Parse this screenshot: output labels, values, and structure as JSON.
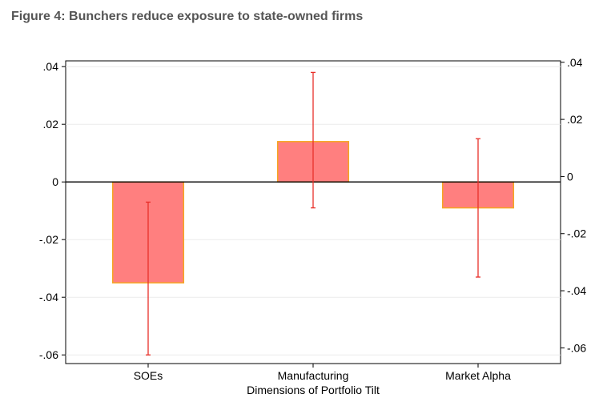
{
  "figure_title": "Figure 4: Bunchers reduce exposure to state-owned firms",
  "chart_data": {
    "type": "bar",
    "title": "",
    "xlabel": "Dimensions of Portfolio Tilt",
    "ylabel": "",
    "categories": [
      "SOEs",
      "Manufacturing",
      "Market Alpha"
    ],
    "values": [
      -0.035,
      0.014,
      -0.009
    ],
    "ci_low": [
      -0.06,
      -0.009,
      -0.033
    ],
    "ci_high": [
      -0.007,
      0.038,
      0.015
    ],
    "ylim": [
      -0.063,
      0.042
    ],
    "left_ticks": [
      0.04,
      0.02,
      0,
      -0.02,
      -0.04,
      -0.06
    ],
    "left_tick_labels": [
      ".04",
      ".02",
      "0",
      "-.02",
      "-.04",
      "-.06"
    ],
    "right_ticks": [
      0.04,
      0.02,
      0,
      -0.02,
      -0.04,
      -0.06
    ],
    "right_tick_labels": [
      ".04",
      ".02",
      "0",
      "-.02",
      "-.04",
      "-.06"
    ],
    "grid": true,
    "colors": {
      "bar_fill": "#ff7f7f",
      "bar_edge": "#f5a623",
      "error_bar": "#e8302a",
      "zero_line": "#000000",
      "grid": "#ececec",
      "title": "#555555"
    }
  }
}
